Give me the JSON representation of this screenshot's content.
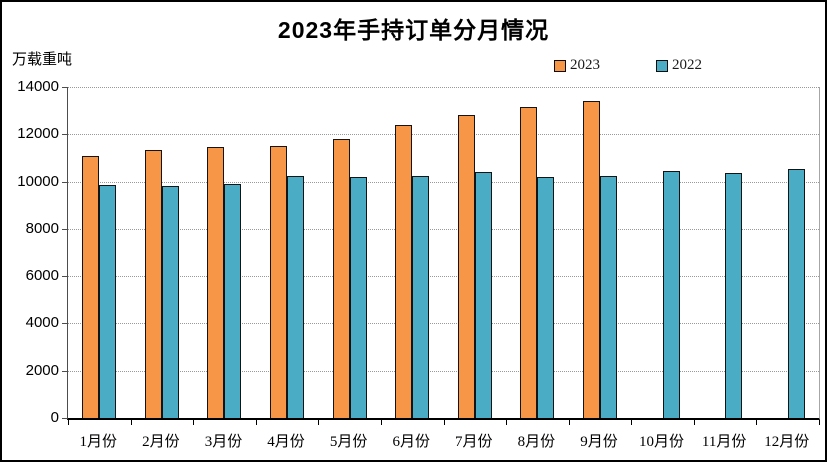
{
  "title": "2023年手持订单分月情况",
  "y_axis": {
    "unit_label": "万载重吨"
  },
  "legend": {
    "items": [
      {
        "label": "2023",
        "color": "#F79646"
      },
      {
        "label": "2022",
        "color": "#4BACC6"
      }
    ]
  },
  "chart_data": {
    "type": "bar",
    "title": "2023年手持订单分月情况",
    "xlabel": "",
    "ylabel": "万载重吨",
    "ylim": [
      0,
      14000
    ],
    "y_ticks": [
      0,
      2000,
      4000,
      6000,
      8000,
      10000,
      12000,
      14000
    ],
    "grid": "horizontal-dotted",
    "legend_position": "top-right",
    "categories": [
      "1月份",
      "2月份",
      "3月份",
      "4月份",
      "5月份",
      "6月份",
      "7月份",
      "8月份",
      "9月份",
      "10月份",
      "11月份",
      "12月份"
    ],
    "series": [
      {
        "name": "2023",
        "color": "#F79646",
        "values": [
          11100,
          11350,
          11450,
          11500,
          11800,
          12400,
          12800,
          13150,
          13400,
          null,
          null,
          null
        ]
      },
      {
        "name": "2022",
        "color": "#4BACC6",
        "values": [
          9850,
          9800,
          9900,
          10250,
          10200,
          10250,
          10400,
          10200,
          10250,
          10450,
          10350,
          10550
        ]
      }
    ]
  }
}
